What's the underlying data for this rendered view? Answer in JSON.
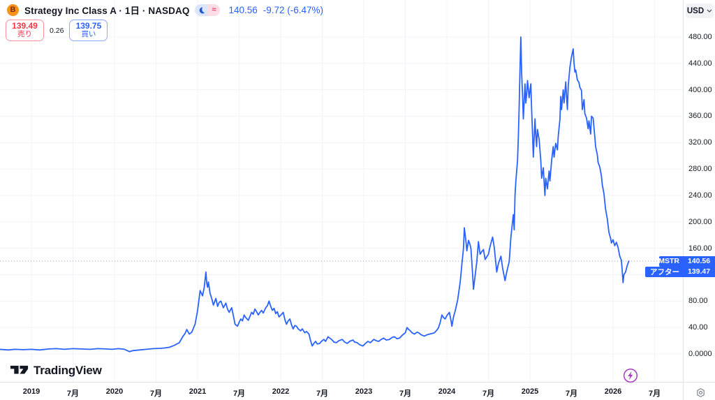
{
  "header": {
    "logo_letter": "B",
    "title": "Strategy Inc Class A · 1日 · NASDAQ",
    "last_price": "140.56",
    "change": "-9.72 (-6.47%)",
    "approx_symbol": "≈"
  },
  "trade_panel": {
    "sell_price": "139.49",
    "sell_label": "売り",
    "spread": "0.26",
    "buy_price": "139.75",
    "buy_label": "買い"
  },
  "badges": {
    "symbol": {
      "label": "MSTR",
      "value": "140.56"
    },
    "after_hours": {
      "label": "アフター",
      "value": "139.47"
    }
  },
  "price_axis": {
    "currency": "USD"
  },
  "watermark": "TradingView",
  "colors": {
    "line_blue": "#2962FF",
    "sell_red": "#F23645",
    "buy_blue": "#2962FF",
    "badge_blue": "#2962FF",
    "grid": "#f0f3fa",
    "axis_border": "#e0e3eb",
    "dotted_price_line": "#9aa5c4",
    "lightning_purple": "#a53cc1",
    "logo_orange": "#f7931a"
  },
  "chart_data": {
    "type": "line",
    "symbol": "MSTR",
    "title": "Strategy Inc Class A",
    "interval": "1日",
    "exchange": "NASDAQ",
    "currency": "USD",
    "last_price": 140.56,
    "change": -9.72,
    "change_pct": -6.47,
    "after_hours_price": 139.47,
    "x_unit": "decimal_year",
    "xlim": [
      2018.622,
      2026.84
    ],
    "ylim": [
      0,
      536
    ],
    "grid": true,
    "y_ticks": [
      {
        "price": 480,
        "label": "480.00"
      },
      {
        "price": 440,
        "label": "440.00"
      },
      {
        "price": 400,
        "label": "400.00"
      },
      {
        "price": 360,
        "label": "360.00"
      },
      {
        "price": 320,
        "label": "320.00"
      },
      {
        "price": 280,
        "label": "280.00"
      },
      {
        "price": 240,
        "label": "240.00"
      },
      {
        "price": 200,
        "label": "200.00"
      },
      {
        "price": 160,
        "label": "160.00"
      },
      {
        "price": 120,
        "label": "120.00"
      },
      {
        "price": 80,
        "label": "80.00"
      },
      {
        "price": 40,
        "label": "40.00"
      },
      {
        "price": 0,
        "label": "0.0000"
      }
    ],
    "x_ticks": [
      {
        "t": 2019.0,
        "label": "2019"
      },
      {
        "t": 2019.5,
        "label": "7月"
      },
      {
        "t": 2020.0,
        "label": "2020"
      },
      {
        "t": 2020.5,
        "label": "7月"
      },
      {
        "t": 2021.0,
        "label": "2021"
      },
      {
        "t": 2021.5,
        "label": "7月"
      },
      {
        "t": 2022.0,
        "label": "2022"
      },
      {
        "t": 2022.5,
        "label": "7月"
      },
      {
        "t": 2023.0,
        "label": "2023"
      },
      {
        "t": 2023.5,
        "label": "7月"
      },
      {
        "t": 2024.0,
        "label": "2024"
      },
      {
        "t": 2024.5,
        "label": "7月"
      },
      {
        "t": 2025.0,
        "label": "2025"
      },
      {
        "t": 2025.5,
        "label": "7月"
      },
      {
        "t": 2026.0,
        "label": "2026"
      },
      {
        "t": 2026.5,
        "label": "7月"
      }
    ],
    "points": [
      [
        2018.62,
        7
      ],
      [
        2018.72,
        6
      ],
      [
        2018.8,
        7
      ],
      [
        2018.9,
        6.5
      ],
      [
        2019.0,
        7
      ],
      [
        2019.1,
        6
      ],
      [
        2019.21,
        7.5
      ],
      [
        2019.3,
        8
      ],
      [
        2019.4,
        7
      ],
      [
        2019.5,
        8
      ],
      [
        2019.6,
        7.5
      ],
      [
        2019.71,
        7
      ],
      [
        2019.8,
        8
      ],
      [
        2019.9,
        7.5
      ],
      [
        2019.97,
        7
      ],
      [
        2020.05,
        8
      ],
      [
        2020.12,
        7
      ],
      [
        2020.18,
        3.5
      ],
      [
        2020.22,
        5
      ],
      [
        2020.3,
        6
      ],
      [
        2020.38,
        7
      ],
      [
        2020.47,
        8
      ],
      [
        2020.55,
        8.5
      ],
      [
        2020.6,
        9
      ],
      [
        2020.66,
        10
      ],
      [
        2020.72,
        13
      ],
      [
        2020.78,
        17
      ],
      [
        2020.82,
        26
      ],
      [
        2020.85,
        31
      ],
      [
        2020.87,
        37
      ],
      [
        2020.9,
        30
      ],
      [
        2020.93,
        33
      ],
      [
        2020.97,
        45
      ],
      [
        2021.0,
        66
      ],
      [
        2021.03,
        96
      ],
      [
        2021.06,
        88
      ],
      [
        2021.08,
        101
      ],
      [
        2021.1,
        124
      ],
      [
        2021.11,
        107
      ],
      [
        2021.12,
        101
      ],
      [
        2021.13,
        109
      ],
      [
        2021.15,
        92
      ],
      [
        2021.17,
        84
      ],
      [
        2021.19,
        74
      ],
      [
        2021.22,
        84
      ],
      [
        2021.24,
        72
      ],
      [
        2021.26,
        78
      ],
      [
        2021.28,
        80
      ],
      [
        2021.31,
        70
      ],
      [
        2021.34,
        77
      ],
      [
        2021.36,
        68
      ],
      [
        2021.38,
        63
      ],
      [
        2021.41,
        70
      ],
      [
        2021.43,
        58
      ],
      [
        2021.45,
        45
      ],
      [
        2021.48,
        42
      ],
      [
        2021.5,
        48
      ],
      [
        2021.52,
        53
      ],
      [
        2021.54,
        50
      ],
      [
        2021.56,
        59
      ],
      [
        2021.58,
        55
      ],
      [
        2021.61,
        51
      ],
      [
        2021.63,
        57
      ],
      [
        2021.65,
        63
      ],
      [
        2021.67,
        60
      ],
      [
        2021.69,
        68
      ],
      [
        2021.71,
        64
      ],
      [
        2021.73,
        59
      ],
      [
        2021.75,
        63
      ],
      [
        2021.77,
        66
      ],
      [
        2021.79,
        62
      ],
      [
        2021.82,
        70
      ],
      [
        2021.84,
        73
      ],
      [
        2021.86,
        80
      ],
      [
        2021.88,
        72
      ],
      [
        2021.9,
        66
      ],
      [
        2021.92,
        69
      ],
      [
        2021.94,
        61
      ],
      [
        2021.96,
        64
      ],
      [
        2021.98,
        56
      ],
      [
        2022.01,
        60
      ],
      [
        2022.03,
        63
      ],
      [
        2022.05,
        52
      ],
      [
        2022.07,
        45
      ],
      [
        2022.09,
        50
      ],
      [
        2022.11,
        53
      ],
      [
        2022.13,
        44
      ],
      [
        2022.15,
        38
      ],
      [
        2022.17,
        43
      ],
      [
        2022.19,
        42
      ],
      [
        2022.21,
        38
      ],
      [
        2022.24,
        35
      ],
      [
        2022.26,
        38
      ],
      [
        2022.29,
        32
      ],
      [
        2022.31,
        34
      ],
      [
        2022.34,
        30
      ],
      [
        2022.36,
        20
      ],
      [
        2022.38,
        12
      ],
      [
        2022.4,
        16
      ],
      [
        2022.42,
        19
      ],
      [
        2022.44,
        15
      ],
      [
        2022.47,
        16
      ],
      [
        2022.49,
        19
      ],
      [
        2022.52,
        22
      ],
      [
        2022.54,
        19
      ],
      [
        2022.57,
        26
      ],
      [
        2022.6,
        23
      ],
      [
        2022.62,
        21
      ],
      [
        2022.64,
        18
      ],
      [
        2022.67,
        17
      ],
      [
        2022.7,
        20
      ],
      [
        2022.74,
        22
      ],
      [
        2022.77,
        18
      ],
      [
        2022.8,
        16
      ],
      [
        2022.83,
        19
      ],
      [
        2022.87,
        21
      ],
      [
        2022.89,
        18
      ],
      [
        2022.92,
        17
      ],
      [
        2022.95,
        14
      ],
      [
        2022.99,
        12
      ],
      [
        2023.02,
        16
      ],
      [
        2023.05,
        19
      ],
      [
        2023.08,
        17
      ],
      [
        2023.12,
        22
      ],
      [
        2023.15,
        20
      ],
      [
        2023.18,
        19
      ],
      [
        2023.21,
        22
      ],
      [
        2023.24,
        24
      ],
      [
        2023.27,
        21
      ],
      [
        2023.31,
        22
      ],
      [
        2023.34,
        25
      ],
      [
        2023.37,
        26
      ],
      [
        2023.4,
        23
      ],
      [
        2023.43,
        24
      ],
      [
        2023.46,
        28
      ],
      [
        2023.5,
        32
      ],
      [
        2023.52,
        40
      ],
      [
        2023.54,
        37
      ],
      [
        2023.56,
        35
      ],
      [
        2023.58,
        32
      ],
      [
        2023.61,
        30
      ],
      [
        2023.64,
        33
      ],
      [
        2023.66,
        32
      ],
      [
        2023.69,
        29
      ],
      [
        2023.73,
        27
      ],
      [
        2023.76,
        29
      ],
      [
        2023.79,
        30
      ],
      [
        2023.82,
        31
      ],
      [
        2023.85,
        32
      ],
      [
        2023.88,
        36
      ],
      [
        2023.9,
        40
      ],
      [
        2023.92,
        48
      ],
      [
        2023.94,
        59
      ],
      [
        2023.96,
        55
      ],
      [
        2023.98,
        53
      ],
      [
        2024.0,
        58
      ],
      [
        2024.03,
        63
      ],
      [
        2024.05,
        50
      ],
      [
        2024.06,
        42
      ],
      [
        2024.08,
        56
      ],
      [
        2024.1,
        65
      ],
      [
        2024.13,
        82
      ],
      [
        2024.16,
        109
      ],
      [
        2024.18,
        135
      ],
      [
        2024.2,
        160
      ],
      [
        2024.21,
        191
      ],
      [
        2024.23,
        170
      ],
      [
        2024.24,
        156
      ],
      [
        2024.26,
        172
      ],
      [
        2024.28,
        165
      ],
      [
        2024.29,
        159
      ],
      [
        2024.31,
        120
      ],
      [
        2024.32,
        98
      ],
      [
        2024.34,
        119
      ],
      [
        2024.36,
        140
      ],
      [
        2024.38,
        170
      ],
      [
        2024.4,
        151
      ],
      [
        2024.42,
        155
      ],
      [
        2024.44,
        158
      ],
      [
        2024.46,
        143
      ],
      [
        2024.48,
        147
      ],
      [
        2024.5,
        151
      ],
      [
        2024.52,
        163
      ],
      [
        2024.55,
        177
      ],
      [
        2024.57,
        161
      ],
      [
        2024.6,
        124
      ],
      [
        2024.62,
        137
      ],
      [
        2024.65,
        148
      ],
      [
        2024.67,
        130
      ],
      [
        2024.7,
        111
      ],
      [
        2024.72,
        124
      ],
      [
        2024.75,
        140
      ],
      [
        2024.77,
        177
      ],
      [
        2024.79,
        200
      ],
      [
        2024.8,
        211
      ],
      [
        2024.81,
        188
      ],
      [
        2024.82,
        240
      ],
      [
        2024.83,
        262
      ],
      [
        2024.85,
        293
      ],
      [
        2024.86,
        330
      ],
      [
        2024.87,
        378
      ],
      [
        2024.88,
        430
      ],
      [
        2024.89,
        480
      ],
      [
        2024.9,
        425
      ],
      [
        2024.91,
        394
      ],
      [
        2024.92,
        356
      ],
      [
        2024.94,
        409
      ],
      [
        2024.95,
        380
      ],
      [
        2024.96,
        394
      ],
      [
        2024.97,
        414
      ],
      [
        2024.99,
        388
      ],
      [
        2025.01,
        409
      ],
      [
        2025.02,
        370
      ],
      [
        2025.03,
        335
      ],
      [
        2025.04,
        298
      ],
      [
        2025.06,
        356
      ],
      [
        2025.07,
        330
      ],
      [
        2025.08,
        314
      ],
      [
        2025.09,
        340
      ],
      [
        2025.11,
        325
      ],
      [
        2025.13,
        293
      ],
      [
        2025.14,
        266
      ],
      [
        2025.16,
        282
      ],
      [
        2025.18,
        240
      ],
      [
        2025.19,
        266
      ],
      [
        2025.21,
        250
      ],
      [
        2025.23,
        277
      ],
      [
        2025.24,
        262
      ],
      [
        2025.26,
        293
      ],
      [
        2025.28,
        314
      ],
      [
        2025.29,
        298
      ],
      [
        2025.31,
        319
      ],
      [
        2025.33,
        309
      ],
      [
        2025.34,
        330
      ],
      [
        2025.36,
        355
      ],
      [
        2025.37,
        390
      ],
      [
        2025.38,
        370
      ],
      [
        2025.4,
        400
      ],
      [
        2025.41,
        380
      ],
      [
        2025.43,
        412
      ],
      [
        2025.44,
        390
      ],
      [
        2025.45,
        370
      ],
      [
        2025.46,
        406
      ],
      [
        2025.48,
        434
      ],
      [
        2025.5,
        450
      ],
      [
        2025.52,
        462
      ],
      [
        2025.53,
        441
      ],
      [
        2025.54,
        427
      ],
      [
        2025.55,
        430
      ],
      [
        2025.57,
        415
      ],
      [
        2025.59,
        411
      ],
      [
        2025.6,
        404
      ],
      [
        2025.62,
        399
      ],
      [
        2025.63,
        370
      ],
      [
        2025.65,
        385
      ],
      [
        2025.66,
        364
      ],
      [
        2025.68,
        357
      ],
      [
        2025.7,
        341
      ],
      [
        2025.71,
        353
      ],
      [
        2025.73,
        333
      ],
      [
        2025.74,
        360
      ],
      [
        2025.76,
        357
      ],
      [
        2025.78,
        328
      ],
      [
        2025.79,
        314
      ],
      [
        2025.81,
        302
      ],
      [
        2025.82,
        290
      ],
      [
        2025.84,
        283
      ],
      [
        2025.86,
        269
      ],
      [
        2025.87,
        256
      ],
      [
        2025.89,
        243
      ],
      [
        2025.91,
        219
      ],
      [
        2025.93,
        205
      ],
      [
        2025.95,
        184
      ],
      [
        2025.97,
        175
      ],
      [
        2025.98,
        168
      ],
      [
        2026.0,
        173
      ],
      [
        2026.02,
        164
      ],
      [
        2026.04,
        169
      ],
      [
        2026.06,
        161
      ],
      [
        2026.08,
        148
      ],
      [
        2026.1,
        142
      ],
      [
        2026.11,
        126
      ],
      [
        2026.12,
        108
      ],
      [
        2026.13,
        120
      ],
      [
        2026.15,
        124
      ],
      [
        2026.17,
        134
      ],
      [
        2026.19,
        140.56
      ]
    ]
  }
}
